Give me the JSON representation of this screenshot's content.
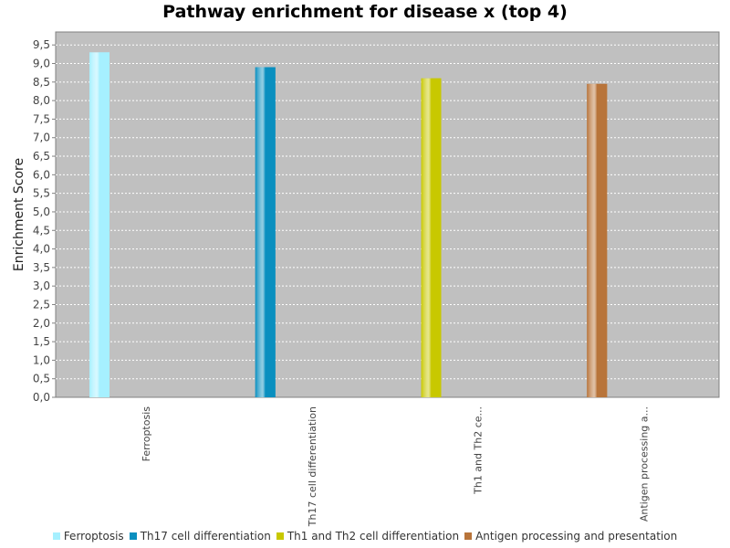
{
  "chart_data": {
    "type": "bar",
    "title": "Pathway enrichment for disease x (top 4)",
    "xlabel": "",
    "ylabel": "Enrichment Score",
    "categories": [
      "Ferroptosis",
      "Th17 cell differentiation",
      "Th1 and Th2 ce...",
      "Antigen processing a..."
    ],
    "series": [
      {
        "name": "Ferroptosis",
        "color": "#a6f0ff",
        "values": [
          9.3,
          null,
          null,
          null
        ]
      },
      {
        "name": "Th17 cell differentiation",
        "color": "#0a8fbf",
        "values": [
          null,
          8.9,
          null,
          null
        ]
      },
      {
        "name": "Th1 and Th2 cell differentiation",
        "color": "#c8c800",
        "values": [
          null,
          null,
          8.6,
          null
        ]
      },
      {
        "name": "Antigen processing and presentation",
        "color": "#b8743a",
        "values": [
          null,
          null,
          null,
          8.45
        ]
      }
    ],
    "ylim": [
      0,
      9.85
    ],
    "yticks": [
      "0,0",
      "0,5",
      "1,0",
      "1,5",
      "2,0",
      "2,5",
      "3,0",
      "3,5",
      "4,0",
      "4,5",
      "5,0",
      "5,5",
      "6,0",
      "6,5",
      "7,0",
      "7,5",
      "8,0",
      "8,5",
      "9,0",
      "9,5"
    ],
    "grid": true,
    "legend_position": "bottom"
  }
}
